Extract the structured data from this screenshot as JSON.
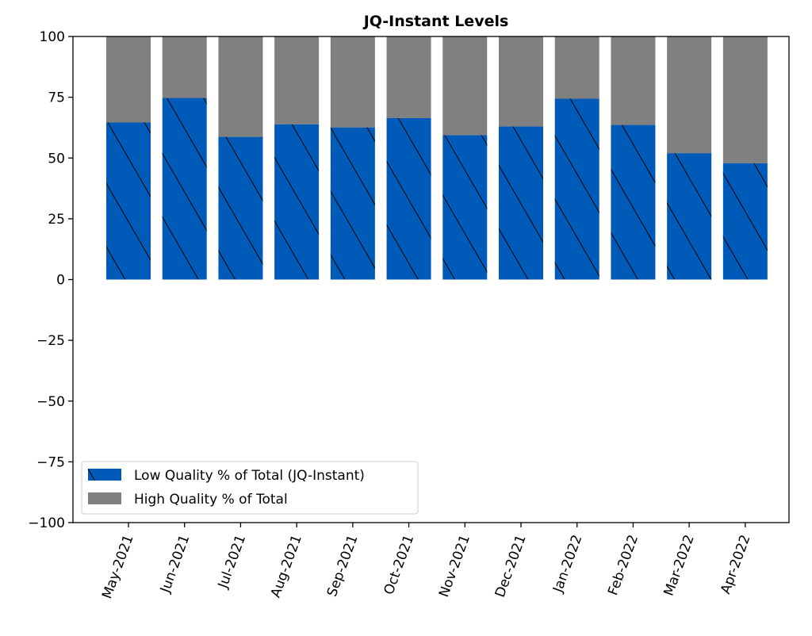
{
  "chart_data": {
    "type": "bar",
    "stacked": true,
    "title": "JQ-Instant Levels",
    "xlabel": "",
    "ylabel": "",
    "ylim": [
      -100,
      100
    ],
    "yticks": [
      100,
      75,
      50,
      25,
      0,
      -25,
      -50,
      -75,
      -100
    ],
    "ytick_labels": [
      "100",
      "75",
      "50",
      "25",
      "0",
      "−25",
      "−50",
      "−75",
      "−100"
    ],
    "categories": [
      "May-2021",
      "Jun-2021",
      "Jul-2021",
      "Aug-2021",
      "Sep-2021",
      "Oct-2021",
      "Nov-2021",
      "Dec-2021",
      "Jan-2022",
      "Feb-2022",
      "Mar-2022",
      "Apr-2022"
    ],
    "series": [
      {
        "name": "Low Quality % of Total (JQ-Instant)",
        "color": "#005ab8",
        "hatch": "\\",
        "values": [
          64.6,
          74.7,
          58.7,
          63.9,
          62.6,
          66.4,
          59.4,
          63.0,
          74.4,
          63.6,
          52.0,
          47.9
        ]
      },
      {
        "name": "High Quality % of Total",
        "color": "#808080",
        "values": [
          35.4,
          25.3,
          41.3,
          36.1,
          37.4,
          33.6,
          40.6,
          37.0,
          25.6,
          36.4,
          48.0,
          52.1
        ]
      }
    ],
    "legend_position": "lower-left",
    "grid": false
  }
}
